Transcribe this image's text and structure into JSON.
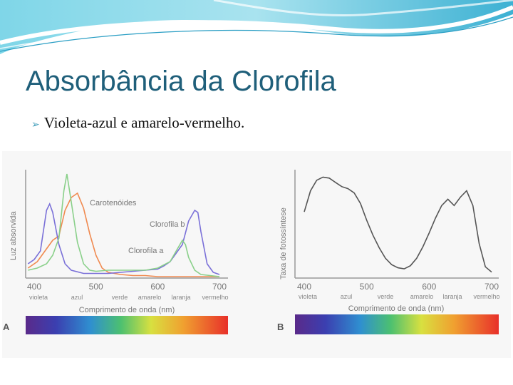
{
  "slide": {
    "title": "Absorbância da Clorofila",
    "bullet": "Violeta-azul e amarelo-vermelho."
  },
  "colors": {
    "title": "#1f5f7a",
    "carotenoids": "#f08a50",
    "chlorophyll_a": "#8ad08a",
    "chlorophyll_b": "#7a70d8",
    "photosynthesis": "#555555"
  },
  "chart_data": [
    {
      "type": "line",
      "panel_label": "A",
      "title": "",
      "xlabel": "Comprimento de onda (nm)",
      "ylabel": "Luz absorvida",
      "xlim": [
        400,
        700
      ],
      "x_ticks": [
        400,
        500,
        600,
        700
      ],
      "color_names": [
        "violeta",
        "azul",
        "verde",
        "amarelo",
        "laranja",
        "vermelho"
      ],
      "series": [
        {
          "name": "Carotenóides",
          "x": [
            390,
            405,
            420,
            430,
            440,
            450,
            460,
            470,
            480,
            490,
            500,
            510,
            520,
            540,
            560,
            580,
            600,
            640,
            700
          ],
          "y": [
            0.08,
            0.14,
            0.26,
            0.34,
            0.38,
            0.62,
            0.74,
            0.78,
            0.64,
            0.4,
            0.2,
            0.08,
            0.04,
            0.02,
            0.01,
            0.01,
            0.0,
            0.0,
            0.0
          ]
        },
        {
          "name": "Clorofila a",
          "x": [
            390,
            400,
            410,
            420,
            425,
            430,
            440,
            450,
            460,
            480,
            500,
            520,
            540,
            560,
            580,
            600,
            610,
            620,
            640,
            650,
            660,
            665,
            670,
            680,
            690,
            700
          ],
          "y": [
            0.12,
            0.16,
            0.24,
            0.62,
            0.68,
            0.6,
            0.3,
            0.12,
            0.06,
            0.03,
            0.03,
            0.03,
            0.04,
            0.05,
            0.06,
            0.07,
            0.1,
            0.14,
            0.3,
            0.52,
            0.62,
            0.6,
            0.42,
            0.12,
            0.04,
            0.02
          ]
        },
        {
          "name": "Clorofila b",
          "x": [
            390,
            405,
            420,
            430,
            440,
            448,
            453,
            460,
            470,
            480,
            490,
            500,
            520,
            540,
            560,
            580,
            600,
            620,
            630,
            640,
            645,
            650,
            660,
            670,
            700
          ],
          "y": [
            0.06,
            0.08,
            0.12,
            0.2,
            0.36,
            0.8,
            0.96,
            0.7,
            0.32,
            0.12,
            0.06,
            0.05,
            0.06,
            0.06,
            0.06,
            0.06,
            0.08,
            0.14,
            0.24,
            0.34,
            0.3,
            0.18,
            0.06,
            0.02,
            0.0
          ]
        }
      ]
    },
    {
      "type": "line",
      "panel_label": "B",
      "title": "",
      "xlabel": "Comprimento de onda (nm)",
      "ylabel": "Taxa de fotossíntese",
      "xlim": [
        400,
        700
      ],
      "x_ticks": [
        400,
        500,
        600,
        700
      ],
      "color_names": [
        "violeta",
        "azul",
        "verde",
        "amarelo",
        "laranja",
        "vermelho"
      ],
      "series": [
        {
          "name": "",
          "x": [
            400,
            410,
            420,
            430,
            440,
            450,
            460,
            470,
            480,
            490,
            500,
            510,
            520,
            530,
            540,
            550,
            560,
            570,
            580,
            590,
            600,
            610,
            620,
            630,
            640,
            650,
            660,
            670,
            680,
            690,
            700
          ],
          "y": [
            0.6,
            0.8,
            0.9,
            0.93,
            0.92,
            0.88,
            0.84,
            0.82,
            0.78,
            0.68,
            0.52,
            0.38,
            0.26,
            0.16,
            0.1,
            0.07,
            0.06,
            0.09,
            0.16,
            0.27,
            0.4,
            0.54,
            0.66,
            0.72,
            0.66,
            0.74,
            0.8,
            0.66,
            0.3,
            0.08,
            0.03
          ]
        }
      ]
    }
  ]
}
